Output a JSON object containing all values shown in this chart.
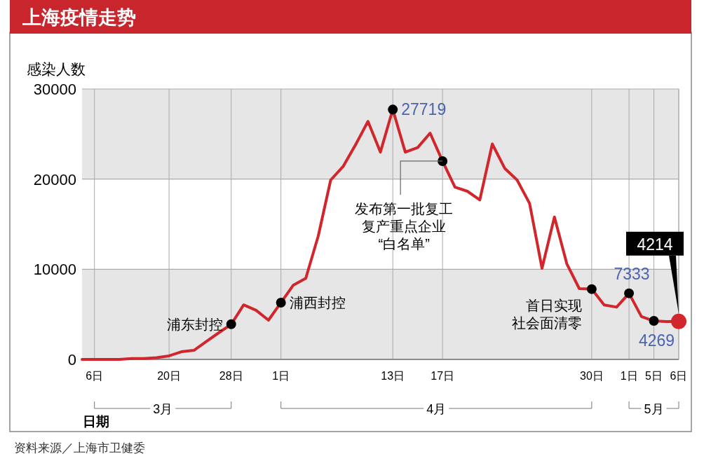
{
  "chart_data": {
    "type": "line",
    "title": "上海疫情走势",
    "ylabel": "感染人数",
    "xlabel": "日期",
    "color": "#d0262c",
    "categories": [
      null,
      "6日",
      null,
      null,
      null,
      null,
      null,
      "20日",
      null,
      null,
      null,
      null,
      "28日",
      null,
      null,
      null,
      "1日",
      null,
      null,
      null,
      null,
      null,
      null,
      null,
      null,
      "13日",
      null,
      null,
      null,
      "17日",
      null,
      null,
      null,
      null,
      null,
      null,
      null,
      null,
      null,
      null,
      null,
      "30日",
      null,
      null,
      "1日",
      null,
      "5日",
      null,
      "6日"
    ],
    "values": [
      0,
      0,
      0,
      0,
      100,
      100,
      200,
      400,
      850,
      1000,
      2000,
      2950,
      3900,
      6050,
      5450,
      4350,
      6300,
      8250,
      9000,
      13700,
      19900,
      21400,
      23800,
      26400,
      23000,
      27719,
      23000,
      23500,
      25100,
      22000,
      19100,
      18650,
      17700,
      23900,
      21200,
      19900,
      17300,
      10100,
      15800,
      10600,
      7850,
      7800,
      6050,
      5800,
      7333,
      4750,
      4269,
      4200,
      4214
    ],
    "value_labels": [
      null,
      null,
      null,
      null,
      null,
      null,
      null,
      null,
      null,
      null,
      null,
      null,
      null,
      null,
      null,
      null,
      null,
      null,
      null,
      null,
      null,
      null,
      null,
      null,
      null,
      "27719",
      null,
      null,
      null,
      null,
      null,
      null,
      null,
      null,
      null,
      null,
      null,
      null,
      null,
      null,
      null,
      null,
      null,
      null,
      "7333",
      null,
      "4269",
      null,
      "4214"
    ],
    "ylim": [
      0,
      30000
    ],
    "yticks": [
      0,
      10000,
      20000,
      30000
    ],
    "grid": true,
    "bands": [
      {
        "axis": "y",
        "from": 0,
        "to": 10000,
        "color": "#e6e6e6"
      },
      {
        "axis": "y",
        "from": 20000,
        "to": 30000,
        "color": "#e6e6e6"
      }
    ],
    "annotations": [
      {
        "text": "浦东封控",
        "x": "28日",
        "y": 3900
      },
      {
        "text": "浦西封控",
        "x": "1日",
        "y": 6300
      },
      {
        "text": "发布第一批复工复产重点企业“白名单”",
        "x": "17日",
        "y": 22000
      },
      {
        "text": "首日实现社会面清零",
        "x": "30日",
        "y": 7800
      },
      "3月",
      "4月",
      "5月",
      "资料来源／上海市卫健委"
    ]
  }
}
